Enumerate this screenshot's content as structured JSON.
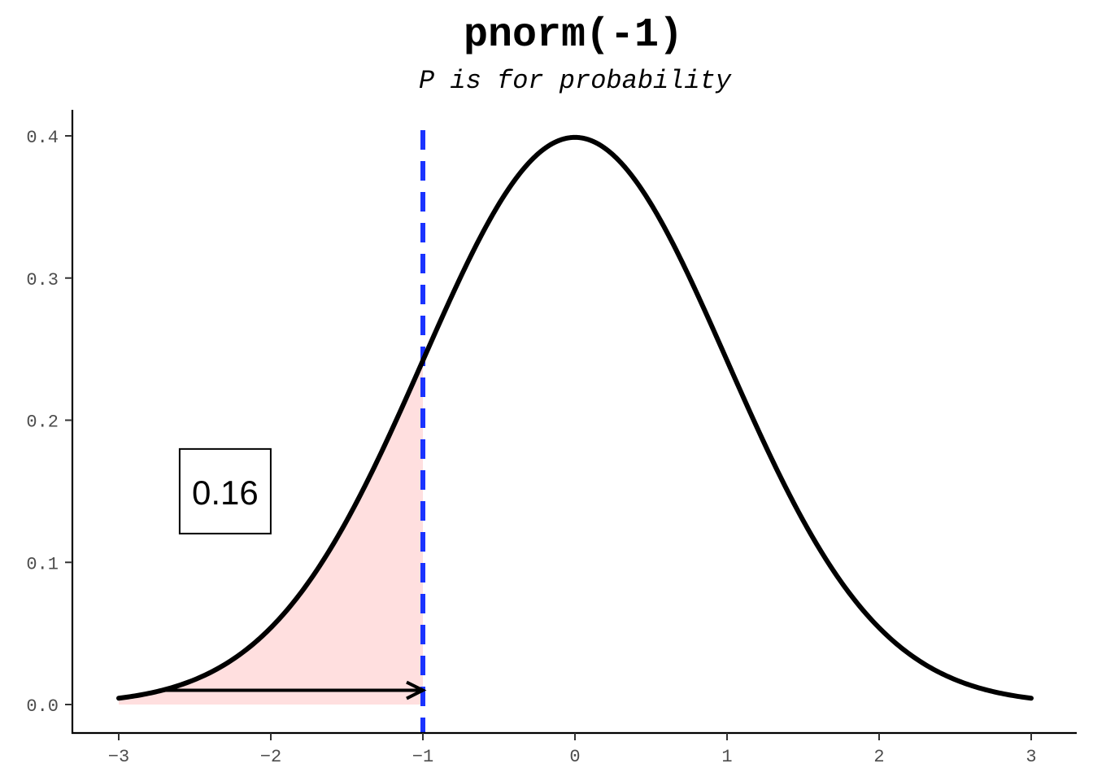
{
  "chart_data": {
    "type": "area",
    "title": "pnorm(-1)",
    "subtitle": "P is for probability",
    "xlabel": "",
    "ylabel": "",
    "xlim": [
      -3,
      3
    ],
    "ylim": [
      0,
      0.4
    ],
    "x_ticks": [
      "-3",
      "-2",
      "-1",
      "0",
      "1",
      "2",
      "3"
    ],
    "y_ticks": [
      "0.0",
      "0.1",
      "0.2",
      "0.3",
      "0.4"
    ],
    "grid": false,
    "legend": "none",
    "series": [
      {
        "kind": "density-curve",
        "function": "dnorm",
        "mean": 0,
        "sd": 1,
        "x_range": [
          -3,
          3
        ],
        "color": "#000000"
      }
    ],
    "shaded_region": {
      "x_from": -3,
      "x_to": -1,
      "color": "#ffdfdf"
    },
    "reference_line": {
      "x": -1,
      "style": "dashed",
      "color": "#1a33ff"
    },
    "arrow": {
      "x_from": -2.7,
      "x_to": -1,
      "y": 0.01,
      "color": "#000000"
    },
    "label_box": {
      "text": "0.16",
      "x": -2.3,
      "y": 0.15
    }
  }
}
